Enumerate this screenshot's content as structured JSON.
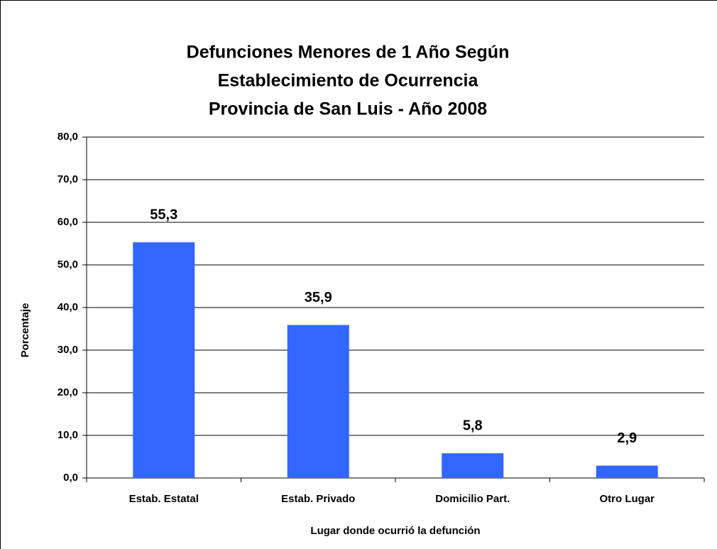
{
  "chart_data": {
    "type": "bar",
    "title": [
      "Defunciones Menores de 1 Año Según",
      "Establecimiento de Ocurrencia",
      "Provincia de San Luis - Año 2008"
    ],
    "x_label": "Lugar donde ocurrió la defunción",
    "y_label": "Porcentaje",
    "categories": [
      "Estab. Estatal",
      "Estab. Privado",
      "Domicilio Part.",
      "Otro Lugar"
    ],
    "values": [
      55.3,
      35.9,
      5.8,
      2.9
    ],
    "value_labels": [
      "55,3",
      "35,9",
      "5,8",
      "2,9"
    ],
    "color": "#3366ff",
    "ylim": [
      0,
      80
    ],
    "yticks": [
      {
        "value": 0,
        "label": "0,0"
      },
      {
        "value": 10,
        "label": "10,0"
      },
      {
        "value": 20,
        "label": "20,0"
      },
      {
        "value": 30,
        "label": "30,0"
      },
      {
        "value": 40,
        "label": "40,0"
      },
      {
        "value": 50,
        "label": "50,0"
      },
      {
        "value": 60,
        "label": "60,0"
      },
      {
        "value": 70,
        "label": "70,0"
      },
      {
        "value": 80,
        "label": "80,0"
      }
    ],
    "grid": true
  }
}
